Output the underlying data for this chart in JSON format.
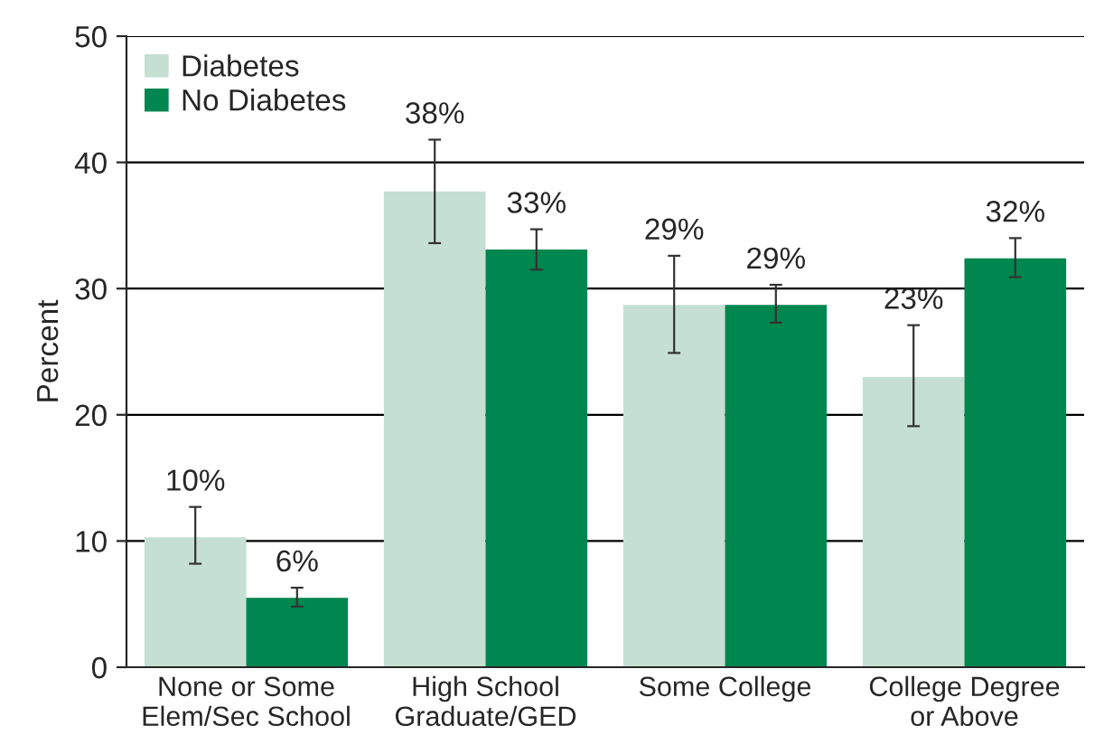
{
  "chart_data": {
    "type": "bar",
    "ylabel": "Percent",
    "categories": [
      "None or Some\nElem/Sec School",
      "High School\nGraduate/GED",
      "Some College",
      "College Degree\nor Above"
    ],
    "series": [
      {
        "name": "Diabetes",
        "color": "#c5e0d2",
        "values": [
          10.3,
          37.7,
          28.7,
          23.0
        ],
        "errors": [
          [
            8.2,
            12.7
          ],
          [
            33.6,
            41.8
          ],
          [
            24.9,
            32.6
          ],
          [
            19.1,
            27.1
          ]
        ],
        "value_labels": [
          "10%",
          "38%",
          "29%",
          "23%"
        ]
      },
      {
        "name": "No Diabetes",
        "color": "#00864f",
        "values": [
          5.5,
          33.1,
          28.7,
          32.4
        ],
        "errors": [
          [
            4.8,
            6.3
          ],
          [
            31.5,
            34.7
          ],
          [
            27.3,
            30.3
          ],
          [
            30.9,
            34.0
          ]
        ],
        "value_labels": [
          "6%",
          "33%",
          "29%",
          "32%"
        ]
      }
    ],
    "ylim": [
      0,
      50
    ],
    "yticks": [
      0,
      10,
      20,
      30,
      40,
      50
    ],
    "grid": "y",
    "legend": "top left"
  }
}
